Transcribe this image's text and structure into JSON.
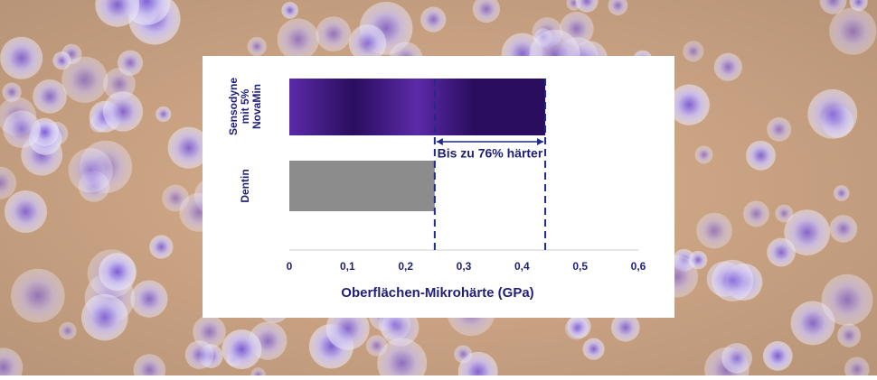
{
  "chart_data": {
    "type": "barh",
    "categories": [
      [
        "Sensodyne",
        "mit 5%",
        "NovaMin"
      ],
      [
        "Dentin"
      ]
    ],
    "series": [
      {
        "color": "#5b2aa8",
        "values": [
          0.44,
          0.25
        ]
      }
    ],
    "bar_colors": [
      "#5b2aa8",
      "#8c8c8c"
    ],
    "xlabel": "Oberflächen-Mikrohärte (GPa)",
    "xlim": [
      0,
      0.6
    ],
    "xticks": [
      0,
      {
        "value": 0.1,
        "label": "0,1"
      },
      {
        "value": 0.2,
        "label": "0,2"
      },
      {
        "value": 0.3,
        "label": "0,3"
      },
      {
        "value": 0.4,
        "label": "0,4"
      },
      {
        "value": 0.5,
        "label": "0,5"
      },
      {
        "value": 0.6,
        "label": "0,6"
      }
    ],
    "annotation": "Bis zu 76% härter",
    "text_color": "#1f1f7a"
  }
}
